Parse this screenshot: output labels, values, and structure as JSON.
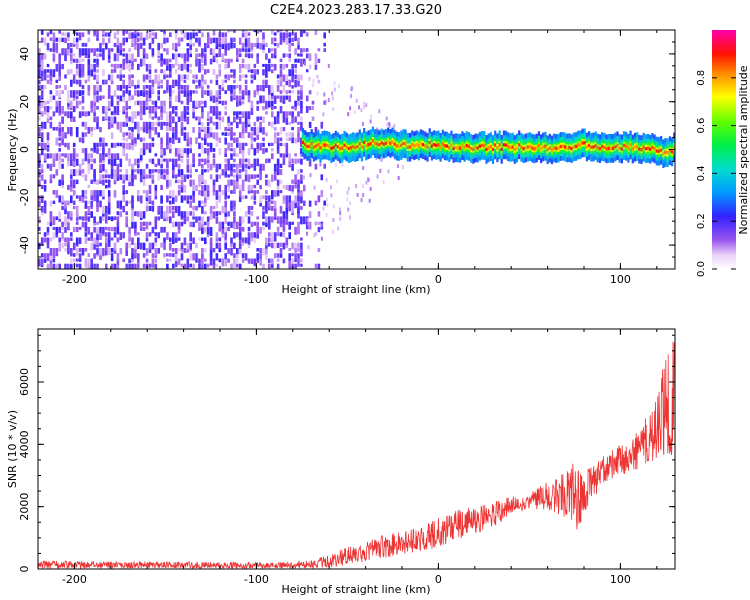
{
  "title": "C2E4.2023.283.17.33.G20",
  "chart_data": [
    {
      "type": "heatmap",
      "xlabel": "Height of straight line (km)",
      "ylabel": "Frequency (Hz)",
      "xlim": [
        -220,
        130
      ],
      "ylim": [
        -50,
        50
      ],
      "xticks": [
        -200,
        -100,
        0,
        100
      ],
      "xtick_labels": [
        "-200",
        "-100",
        "0",
        "100"
      ],
      "yticks": [
        -40,
        -20,
        0,
        20,
        40
      ],
      "ytick_labels": [
        "-40",
        "-20",
        "0",
        "20",
        "40"
      ],
      "grid": false,
      "noise_region_x": [
        -220,
        -75
      ],
      "signal_band": {
        "x": [
          -75,
          -60,
          -45,
          -35,
          -25,
          -15,
          -5,
          5,
          10,
          55,
          60,
          70,
          80,
          90,
          100,
          110,
          120,
          125,
          130
        ],
        "freq_center": [
          2,
          1,
          1.5,
          3,
          2.5,
          1,
          2,
          1,
          1,
          1,
          0,
          1,
          2,
          1,
          1,
          1,
          0,
          -2,
          1
        ]
      },
      "colorbar": {
        "label": "Normalized spectral amplitude",
        "range": [
          0.0,
          1.0
        ],
        "ticks": [
          0.0,
          0.2,
          0.4,
          0.6,
          0.8
        ],
        "tick_labels": [
          "0.0",
          "0.2",
          "0.4",
          "0.6",
          "0.8"
        ],
        "colormap": "rainbow (white-violet-blue-cyan-green-yellow-red-magenta)"
      }
    },
    {
      "type": "line",
      "xlabel": "Height of straight line (km)",
      "ylabel": "SNR (10 * v/v)",
      "xlim": [
        -220,
        130
      ],
      "ylim": [
        0,
        7700
      ],
      "xticks": [
        -200,
        -100,
        0,
        100
      ],
      "xtick_labels": [
        "-200",
        "-100",
        "0",
        "100"
      ],
      "yticks": [
        0,
        2000,
        4000,
        6000
      ],
      "ytick_labels": [
        "0",
        "2000",
        "4000",
        "6000"
      ],
      "grid": false,
      "series": [
        {
          "color": "#ee3333",
          "x": [
            -220,
            -200,
            -180,
            -160,
            -140,
            -120,
            -100,
            -90,
            -80,
            -70,
            -60,
            -50,
            -40,
            -30,
            -20,
            -10,
            0,
            10,
            20,
            30,
            40,
            50,
            60,
            70,
            75,
            80,
            90,
            100,
            110,
            120,
            125,
            130
          ],
          "y": [
            130,
            130,
            120,
            120,
            110,
            110,
            110,
            100,
            120,
            130,
            200,
            400,
            550,
            750,
            850,
            950,
            1150,
            1400,
            1550,
            1750,
            2000,
            2150,
            2300,
            2500,
            2250,
            2450,
            3200,
            3500,
            3800,
            4300,
            4800,
            4200
          ],
          "envelope_upper": [
            260,
            260,
            250,
            240,
            240,
            230,
            230,
            220,
            250,
            280,
            450,
            700,
            850,
            1100,
            1250,
            1350,
            1650,
            1900,
            2000,
            2150,
            2350,
            2450,
            2800,
            3200,
            3450,
            3100,
            3600,
            4000,
            4500,
            5500,
            7000,
            7700
          ],
          "envelope_lower": [
            0,
            20,
            20,
            20,
            20,
            20,
            20,
            20,
            20,
            20,
            50,
            100,
            250,
            350,
            450,
            550,
            650,
            900,
            1100,
            1350,
            1750,
            1900,
            1900,
            1600,
            1050,
            1700,
            2700,
            3000,
            3200,
            3500,
            3700,
            3600
          ]
        }
      ]
    }
  ]
}
